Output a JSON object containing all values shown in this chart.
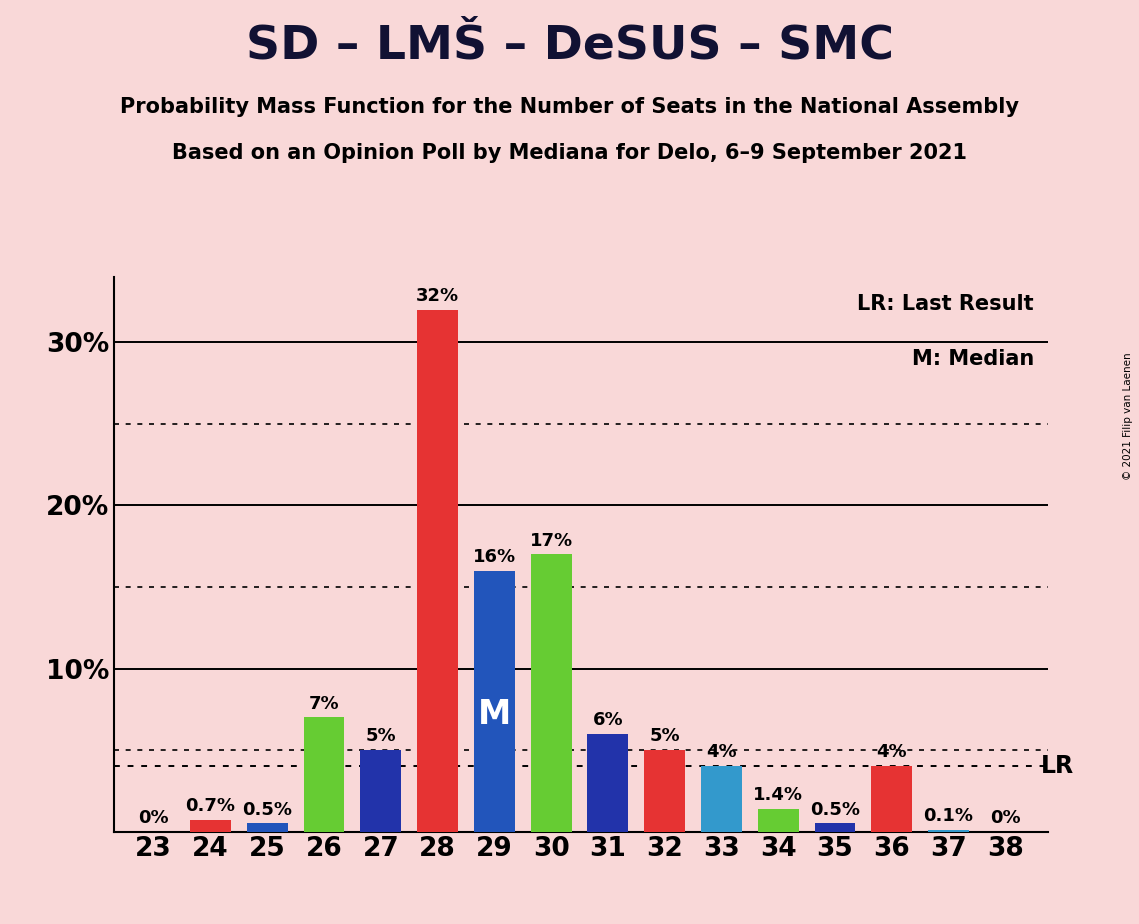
{
  "title": "SD – LMŠ – DeSUS – SMC",
  "subtitle1": "Probability Mass Function for the Number of Seats in the National Assembly",
  "subtitle2": "Based on an Opinion Poll by Mediana for Delo, 6–9 September 2021",
  "copyright": "© 2021 Filip van Laenen",
  "seats": [
    23,
    24,
    25,
    26,
    27,
    28,
    29,
    30,
    31,
    32,
    33,
    34,
    35,
    36,
    37,
    38
  ],
  "values": [
    0.0,
    0.7,
    0.5,
    7.0,
    5.0,
    32.0,
    16.0,
    17.0,
    6.0,
    5.0,
    4.0,
    1.4,
    0.5,
    4.0,
    0.1,
    0.0
  ],
  "colors": [
    "#66cc33",
    "#e63333",
    "#2255bb",
    "#66cc33",
    "#2233aa",
    "#e63333",
    "#2255bb",
    "#66cc33",
    "#2233aa",
    "#e63333",
    "#3399cc",
    "#66cc33",
    "#2233aa",
    "#e63333",
    "#3399cc",
    "#2233aa"
  ],
  "labels": [
    "0%",
    "0.7%",
    "0.5%",
    "7%",
    "5%",
    "32%",
    "16%",
    "17%",
    "6%",
    "5%",
    "4%",
    "1.4%",
    "0.5%",
    "4%",
    "0.1%",
    "0%"
  ],
  "median_seat": 29,
  "lr_value": 4.0,
  "background_color": "#f9d8d8",
  "ylim": [
    0,
    34
  ],
  "ytick_major": [
    10,
    20,
    30
  ],
  "ytick_dotted": [
    5,
    15,
    25
  ],
  "ytick_labels_map": {
    "10": "10%",
    "20": "20%",
    "30": "30%"
  },
  "legend_lr": "LR: Last Result",
  "legend_m": "M: Median",
  "lr_label": "LR",
  "m_label": "M",
  "title_fontsize": 34,
  "subtitle_fontsize": 15,
  "label_fontsize": 13,
  "tick_fontsize": 19
}
